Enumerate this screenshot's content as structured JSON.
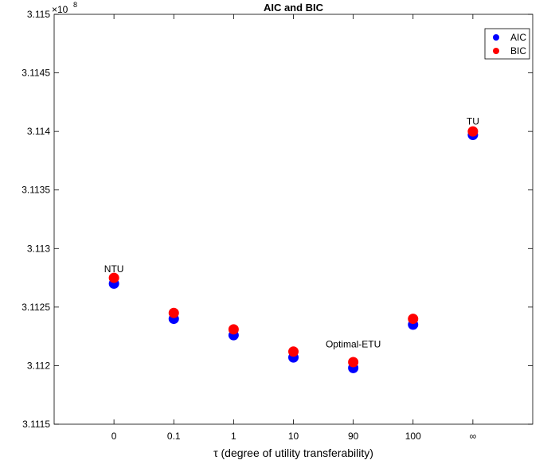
{
  "chart_data": {
    "type": "scatter",
    "title": "AIC and BIC",
    "xlabel": "τ (degree of utility transferability)",
    "ylabel": "",
    "y_exponent_label": "×10",
    "y_exponent_power": "8",
    "categories": [
      "0",
      "0.1",
      "1",
      "10",
      "90",
      "100",
      "∞"
    ],
    "ylim": [
      3.1115,
      3.115
    ],
    "yticks": [
      3.1115,
      3.112,
      3.1125,
      3.113,
      3.1135,
      3.114,
      3.1145,
      3.115
    ],
    "ytick_labels": [
      "3.1115",
      "3.112",
      "3.1125",
      "3.113",
      "3.1135",
      "3.114",
      "3.1145",
      "3.115"
    ],
    "grid": false,
    "legend_position": "top-right",
    "series": [
      {
        "name": "AIC",
        "color": "#0000ff",
        "values": [
          3.1127,
          3.1124,
          3.11226,
          3.11207,
          3.11198,
          3.11235,
          3.11397
        ]
      },
      {
        "name": "BIC",
        "color": "#ff0000",
        "values": [
          3.11275,
          3.11245,
          3.11231,
          3.11212,
          3.11203,
          3.1124,
          3.114
        ]
      }
    ],
    "annotations": [
      {
        "text": "NTU",
        "category": "0",
        "y": 3.11277
      },
      {
        "text": "Optimal-ETU",
        "category": "90",
        "y": 3.11213
      },
      {
        "text": "TU",
        "category": "∞",
        "y": 3.11403
      }
    ]
  }
}
